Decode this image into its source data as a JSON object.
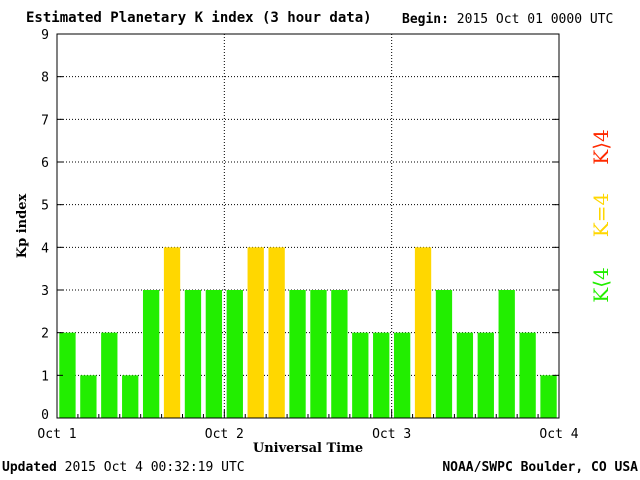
{
  "header": {
    "title": "Estimated Planetary K index (3 hour data)",
    "begin_label": "Begin:",
    "begin_value": "2015 Oct 01 0000 UTC"
  },
  "footer": {
    "updated_label": "Updated",
    "updated_value": "2015 Oct  4 00:32:19 UTC",
    "credit": "NOAA/SWPC Boulder, CO USA"
  },
  "chart_data": {
    "type": "bar",
    "title": "Estimated Planetary K index (3 hour data)",
    "xlabel": "Universal Time",
    "ylabel": "Kp index",
    "ylim": [
      0,
      9
    ],
    "yticks": [
      0,
      1,
      2,
      3,
      4,
      5,
      6,
      7,
      8,
      9
    ],
    "xticks": [
      "Oct 1",
      "Oct 2",
      "Oct 3",
      "Oct 4"
    ],
    "grid": true,
    "values": [
      2,
      1,
      2,
      1,
      3,
      4,
      3,
      3,
      3,
      4,
      4,
      3,
      3,
      3,
      2,
      2,
      2,
      4,
      3,
      2,
      2,
      3,
      2,
      1
    ],
    "colors": {
      "below4": "#22ee00",
      "equal4": "#ffd700",
      "above4": "#ff2a00",
      "axis": "#000000",
      "grid": "#000000"
    },
    "legend": [
      {
        "label": "K<4",
        "color": "#22ee00"
      },
      {
        "label": "K=4",
        "color": "#ffd700"
      },
      {
        "label": "K>4",
        "color": "#ff2a00"
      }
    ],
    "legend_position": "right"
  }
}
